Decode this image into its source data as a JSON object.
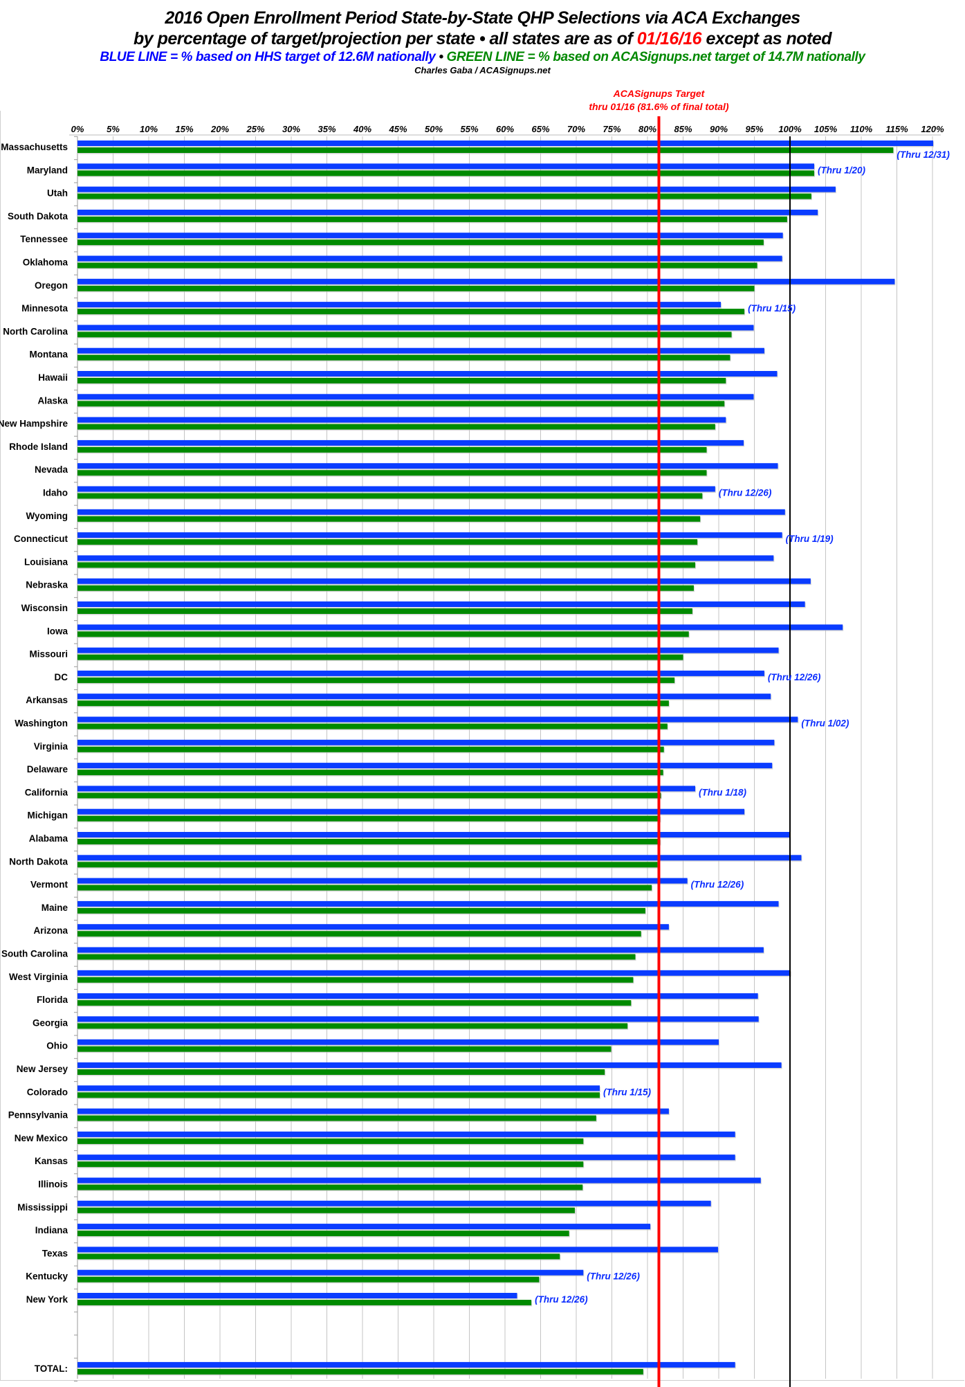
{
  "header": {
    "title": "2016 Open Enrollment Period State-by-State QHP Selections via ACA Exchanges",
    "subtitle_a": "by percentage of target/projection per state  •  all states are as of ",
    "subtitle_date": "01/16/16",
    "subtitle_b": " except as noted",
    "legend_blue": "BLUE LINE = % based on HHS target of 12.6M nationally",
    "legend_sep": "  •  ",
    "legend_green": "GREEN LINE = % based on ACASignups.net target of 14.7M nationally",
    "credit": "Charles Gaba / ACASignups.net"
  },
  "chart_data": {
    "type": "bar",
    "orientation": "horizontal",
    "title": "2016 Open Enrollment Period State-by-State QHP Selections via ACA Exchanges",
    "xlim": [
      0,
      120
    ],
    "x_ticks": [
      "0%",
      "5%",
      "10%",
      "15%",
      "20%",
      "25%",
      "30%",
      "35%",
      "40%",
      "45%",
      "50%",
      "55%",
      "60%",
      "65%",
      "70%",
      "75%",
      "80%",
      "85%",
      "90%",
      "95%",
      "100%",
      "105%",
      "110%",
      "115%",
      "120%"
    ],
    "grid": true,
    "colors": {
      "blue": "#0a3cff",
      "green": "#008a00",
      "target_line": "#ff0000",
      "hundred_line": "#000000"
    },
    "reference_lines": [
      {
        "value": 81.6,
        "label_line1": "ACASignups Target",
        "label_line2": "thru 01/16 (81.6% of final total)",
        "color": "#ff0000"
      },
      {
        "value": 100,
        "color": "#000000"
      }
    ],
    "categories": [
      "Massachusetts",
      "Maryland",
      "Utah",
      "South Dakota",
      "Tennessee",
      "Oklahoma",
      "Oregon",
      "Minnesota",
      "North Carolina",
      "Montana",
      "Hawaii",
      "Alaska",
      "New Hampshire",
      "Rhode Island",
      "Nevada",
      "Idaho",
      "Wyoming",
      "Connecticut",
      "Louisiana",
      "Nebraska",
      "Wisconsin",
      "Iowa",
      "Missouri",
      "DC",
      "Arkansas",
      "Washington",
      "Virginia",
      "Delaware",
      "California",
      "Michigan",
      "Alabama",
      "North Dakota",
      "Vermont",
      "Maine",
      "Arizona",
      "South Carolina",
      "West Virginia",
      "Florida",
      "Georgia",
      "Ohio",
      "New Jersey",
      "Colorado",
      "Pennsylvania",
      "New Mexico",
      "Kansas",
      "Illinois",
      "Mississippi",
      "Indiana",
      "Texas",
      "Kentucky",
      "New York",
      "",
      "",
      "TOTAL:"
    ],
    "series": [
      {
        "color": "blue",
        "values": [
          120.1,
          103.4,
          106.4,
          103.9,
          99.0,
          98.9,
          114.7,
          90.3,
          94.9,
          96.4,
          98.2,
          94.9,
          91.0,
          93.5,
          98.3,
          89.5,
          99.3,
          98.9,
          97.7,
          102.9,
          102.1,
          107.4,
          98.4,
          96.4,
          97.3,
          101.1,
          97.8,
          97.5,
          86.7,
          93.6,
          99.9,
          101.6,
          85.6,
          98.4,
          83.0,
          96.3,
          100.1,
          95.5,
          95.6,
          90.0,
          98.8,
          73.3,
          83.0,
          92.3,
          92.3,
          95.9,
          88.9,
          80.4,
          89.9,
          71.0,
          61.7,
          null,
          null,
          92.3
        ]
      },
      {
        "color": "green",
        "values": [
          114.5,
          103.4,
          103.0,
          99.6,
          96.3,
          95.4,
          95.0,
          93.6,
          91.8,
          91.6,
          91.0,
          90.8,
          89.5,
          88.3,
          88.3,
          87.7,
          87.4,
          87.0,
          86.7,
          86.5,
          86.3,
          85.8,
          85.0,
          83.8,
          83.0,
          82.8,
          82.3,
          82.2,
          81.9,
          81.8,
          81.8,
          81.4,
          80.6,
          79.7,
          79.1,
          78.3,
          78.0,
          77.7,
          77.2,
          74.9,
          74.0,
          73.3,
          72.8,
          71.0,
          71.0,
          70.9,
          69.8,
          69.0,
          67.7,
          64.8,
          63.7,
          null,
          null,
          79.4
        ]
      }
    ],
    "annotations": [
      {
        "category": "Massachusetts",
        "text": "(Thru 12/31)"
      },
      {
        "category": "Maryland",
        "text": "(Thru 1/20)"
      },
      {
        "category": "Minnesota",
        "text": "(Thru 1/15)"
      },
      {
        "category": "Idaho",
        "text": "(Thru 12/26)"
      },
      {
        "category": "Connecticut",
        "text": "(Thru 1/19)"
      },
      {
        "category": "DC",
        "text": "(Thru 12/26)"
      },
      {
        "category": "Washington",
        "text": "(Thru 1/02)"
      },
      {
        "category": "California",
        "text": "(Thru 1/18)"
      },
      {
        "category": "Vermont",
        "text": "(Thru 12/26)"
      },
      {
        "category": "Colorado",
        "text": "(Thru 1/15)"
      },
      {
        "category": "Kentucky",
        "text": "(Thru 12/26)"
      },
      {
        "category": "New York",
        "text": "(Thru 12/26)"
      }
    ]
  }
}
